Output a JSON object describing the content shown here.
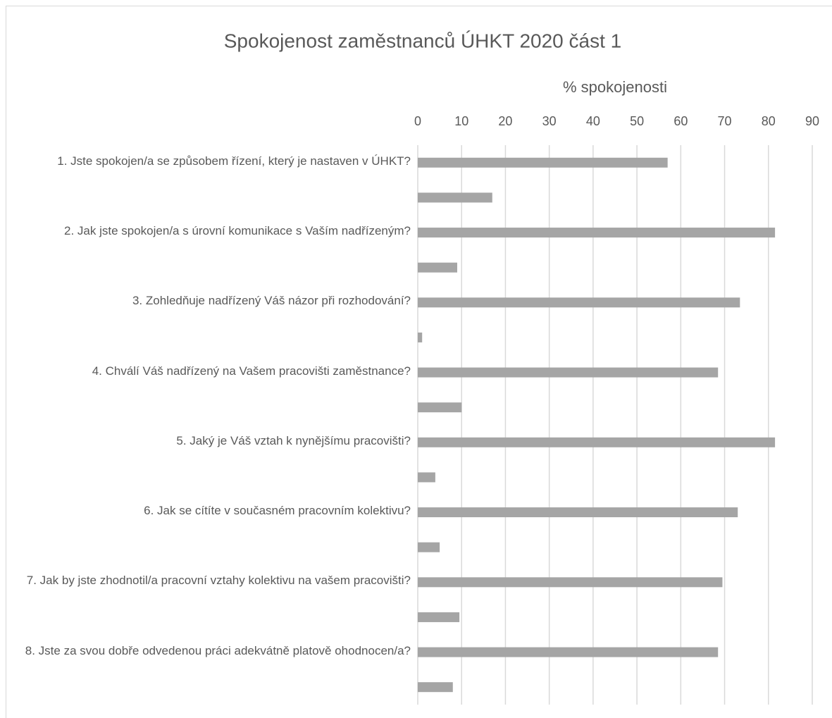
{
  "chart_data": {
    "type": "bar",
    "orientation": "horizontal",
    "title": "Spokojenost zaměstnanců ÚHKT 2020 část 1",
    "x_label": "% spokojenosti",
    "categories": [
      "1. Jste spokojen/a se způsobem řízení, který je nastaven v ÚHKT?",
      null,
      "2. Jak jste spokojen/a s úrovní komunikace s Vaším nadřízeným?",
      null,
      "3. Zohledňuje nadřízený Váš názor při rozhodování?",
      null,
      "4. Chválí Váš nadřízený na Vašem pracovišti zaměstnance?",
      null,
      "5. Jaký je Váš vztah k nynějšímu pracovišti?",
      null,
      "6. Jak se cítíte v současném pracovním kolektivu?",
      null,
      "7. Jak by jste zhodnotil/a pracovní vztahy kolektivu na vašem pracovišti?",
      null,
      "8. Jste za svou dobře odvedenou práci adekvátně platově ohodnocen/a?",
      null
    ],
    "values": [
      57,
      17,
      81.5,
      9,
      73.5,
      1,
      68.5,
      10,
      81.5,
      4,
      73,
      5,
      69.5,
      9.5,
      68.5,
      8
    ],
    "color": "#a5a5a5",
    "xlim": [
      0,
      90
    ],
    "xticks": [
      0,
      10,
      20,
      30,
      40,
      50,
      60,
      70,
      80,
      90
    ],
    "grid": true
  }
}
